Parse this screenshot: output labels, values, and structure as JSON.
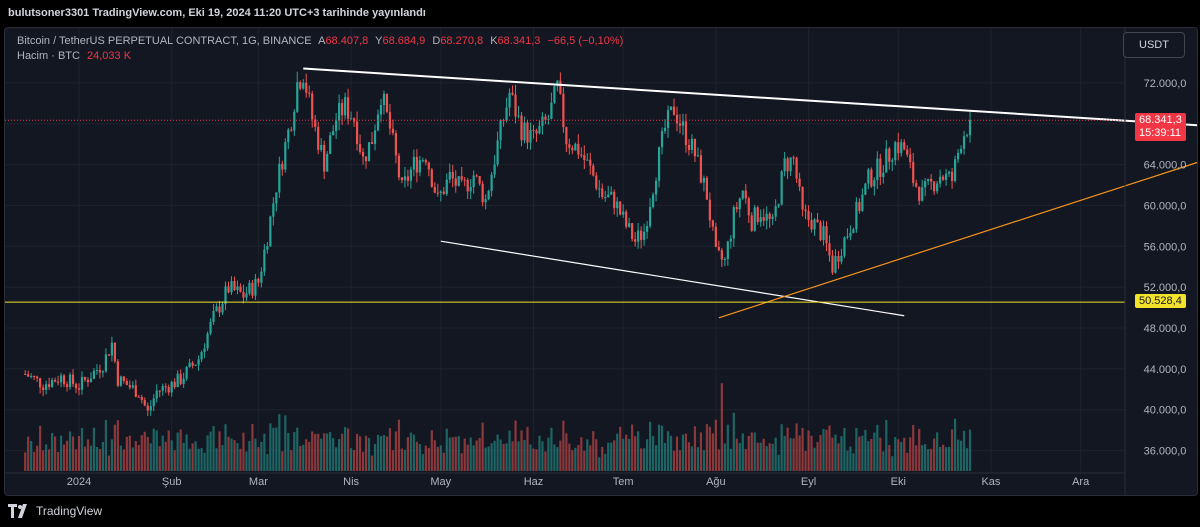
{
  "header": {
    "publish_text": "bulutsoner3301 TradingView.com, Eki 19, 2024 11:20 UTC+3 tarihinde yayınlandı"
  },
  "legend": {
    "symbol": "Bitcoin / TetherUS PERPETUAL CONTRACT, 1G, BINANCE",
    "open_label": "A",
    "open": "68.407,8",
    "high_label": "Y",
    "high": "68.684,9",
    "low_label": "D",
    "low": "68.270,8",
    "close_label": "K",
    "close": "68.341,3",
    "change": "−66,5 (−0,10%)",
    "volume_label": "Hacim · BTC",
    "volume": "24,033 K"
  },
  "currency_button": "USDT",
  "price_tags": {
    "last_price": "68.341,3",
    "countdown": "15:39:11",
    "support_level": "50.528,4"
  },
  "footer": {
    "brand": "TradingView"
  },
  "colors": {
    "up": "#26a69a",
    "down": "#ef5350",
    "support": "#f2e32b",
    "orange_line": "#f7931a",
    "trend_white": "#ffffff",
    "last_price_tag": "#f23645"
  },
  "chart_data": {
    "type": "candlestick",
    "y_axis": {
      "min": 34000,
      "max": 76000,
      "ticks": [
        72000,
        68000,
        64000,
        60000,
        56000,
        52000,
        48000,
        44000,
        40000,
        36000
      ],
      "tick_labels": [
        "72.000,0",
        "68.000,0",
        "64.000,0",
        "60.000,0",
        "56.000,0",
        "52.000,0",
        "48.000,0",
        "44.000,0",
        "40.000,0",
        "36.000,0"
      ]
    },
    "x_axis": {
      "labels": [
        {
          "label": "2024",
          "day": 0
        },
        {
          "label": "Şub",
          "day": 31
        },
        {
          "label": "Mar",
          "day": 60
        },
        {
          "label": "Nis",
          "day": 91
        },
        {
          "label": "May",
          "day": 121
        },
        {
          "label": "Haz",
          "day": 152
        },
        {
          "label": "Tem",
          "day": 182
        },
        {
          "label": "Ağu",
          "day": 213
        },
        {
          "label": "Eyl",
          "day": 244
        },
        {
          "label": "Eki",
          "day": 274
        },
        {
          "label": "Kas",
          "day": 305
        },
        {
          "label": "Ara",
          "day": 335
        }
      ]
    },
    "price_path": [
      [
        -18,
        43500
      ],
      [
        -12,
        42500
      ],
      [
        -6,
        43200
      ],
      [
        0,
        42300
      ],
      [
        8,
        44500
      ],
      [
        11,
        46500
      ],
      [
        13,
        43000
      ],
      [
        20,
        41700
      ],
      [
        23,
        39700
      ],
      [
        26,
        41800
      ],
      [
        31,
        42500
      ],
      [
        34,
        43000
      ],
      [
        40,
        45000
      ],
      [
        45,
        49000
      ],
      [
        50,
        51900
      ],
      [
        55,
        51200
      ],
      [
        60,
        52500
      ],
      [
        63,
        57000
      ],
      [
        66,
        62000
      ],
      [
        71,
        68500
      ],
      [
        73,
        72000
      ],
      [
        75,
        73000
      ],
      [
        78,
        68500
      ],
      [
        82,
        64200
      ],
      [
        86,
        68500
      ],
      [
        89,
        69700
      ],
      [
        92,
        68500
      ],
      [
        95,
        64500
      ],
      [
        98,
        66500
      ],
      [
        101,
        71000
      ],
      [
        104,
        67500
      ],
      [
        108,
        61500
      ],
      [
        112,
        64000
      ],
      [
        116,
        65000
      ],
      [
        120,
        60500
      ],
      [
        124,
        62800
      ],
      [
        128,
        61500
      ],
      [
        132,
        63000
      ],
      [
        136,
        60500
      ],
      [
        140,
        66000
      ],
      [
        144,
        71000
      ],
      [
        148,
        67500
      ],
      [
        152,
        66500
      ],
      [
        157,
        68500
      ],
      [
        160,
        71500
      ],
      [
        163,
        66500
      ],
      [
        167,
        65500
      ],
      [
        171,
        63500
      ],
      [
        175,
        61000
      ],
      [
        179,
        60500
      ],
      [
        183,
        58000
      ],
      [
        186,
        56500
      ],
      [
        189,
        57500
      ],
      [
        193,
        63500
      ],
      [
        196,
        67500
      ],
      [
        199,
        69500
      ],
      [
        202,
        67500
      ],
      [
        206,
        65000
      ],
      [
        210,
        61000
      ],
      [
        213,
        55000
      ],
      [
        216,
        54500
      ],
      [
        219,
        59000
      ],
      [
        222,
        61500
      ],
      [
        225,
        58500
      ],
      [
        228,
        59500
      ],
      [
        232,
        58000
      ],
      [
        236,
        64000
      ],
      [
        239,
        64500
      ],
      [
        242,
        59000
      ],
      [
        245,
        58500
      ],
      [
        249,
        57000
      ],
      [
        252,
        54000
      ],
      [
        255,
        56000
      ],
      [
        258,
        58000
      ],
      [
        261,
        60000
      ],
      [
        264,
        62500
      ],
      [
        267,
        63500
      ],
      [
        270,
        64500
      ],
      [
        273,
        66000
      ],
      [
        276,
        65500
      ],
      [
        279,
        62500
      ],
      [
        282,
        61000
      ],
      [
        285,
        62000
      ],
      [
        288,
        63000
      ],
      [
        292,
        62500
      ],
      [
        295,
        66500
      ],
      [
        298,
        68341
      ]
    ],
    "volume_max_btc": 400,
    "annotations": [
      {
        "type": "trendline",
        "name": "upper-resistance",
        "from": {
          "day": 75,
          "price": 73400
        },
        "to": {
          "day": 420,
          "price": 67000
        },
        "color": "#ffffff"
      },
      {
        "type": "trendline",
        "name": "lower-falling",
        "from": {
          "day": 121,
          "price": 56500
        },
        "to": {
          "day": 276,
          "price": 49200
        },
        "color": "#ffffff"
      },
      {
        "type": "trendline",
        "name": "rising-support",
        "from": {
          "day": 214,
          "price": 49000
        },
        "to": {
          "day": 375,
          "price": 64300
        },
        "color": "#f7931a"
      },
      {
        "type": "hline",
        "name": "support",
        "price": 50528.4,
        "color": "#f2e32b"
      },
      {
        "type": "hline",
        "name": "last-price",
        "price": 68341.3,
        "color": "#f23645",
        "dotted": true
      }
    ]
  }
}
